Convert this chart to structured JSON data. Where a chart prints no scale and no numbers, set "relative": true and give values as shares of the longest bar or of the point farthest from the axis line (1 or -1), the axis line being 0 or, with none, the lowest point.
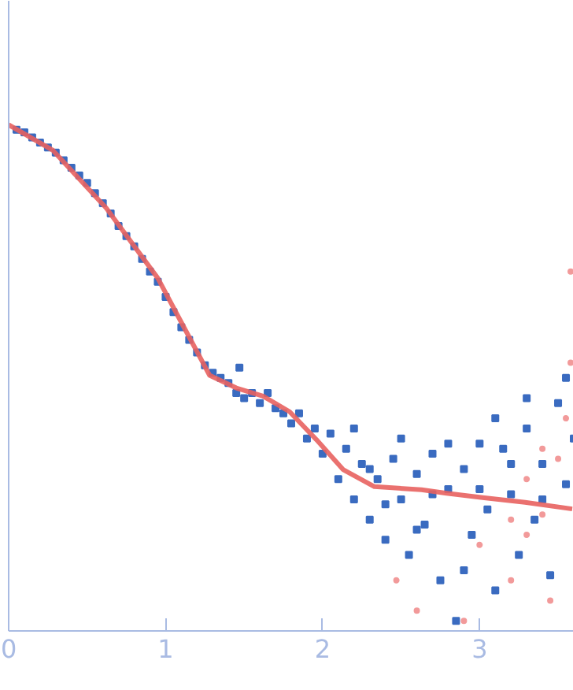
{
  "chart_data": {
    "type": "scatter",
    "relative": true,
    "xlim": [
      0,
      3.6
    ],
    "xticks": [
      0,
      1,
      2,
      3
    ],
    "grid": false,
    "marker": "square",
    "series": [
      {
        "color": "#3a6bc0",
        "x": [
          0.05,
          0.1,
          0.15,
          0.2,
          0.25,
          0.3,
          0.35,
          0.4,
          0.45,
          0.5,
          0.55,
          0.6,
          0.65,
          0.7,
          0.75,
          0.8,
          0.85,
          0.9,
          0.95,
          1.0,
          1.05,
          1.1,
          1.15,
          1.2,
          1.25,
          1.3,
          1.35,
          1.4,
          1.45,
          1.5,
          1.55,
          1.6,
          1.65,
          1.7,
          1.75,
          1.8,
          1.85,
          1.9,
          1.95,
          2.0,
          2.05,
          2.1,
          2.15,
          2.2,
          2.25,
          2.3,
          2.35,
          2.4,
          2.45,
          2.5,
          2.55,
          2.6,
          2.65,
          2.7,
          2.75,
          2.8,
          2.85,
          2.9,
          2.95,
          3.0,
          3.05,
          3.1,
          3.15,
          3.2,
          3.25,
          3.3,
          3.35,
          3.4,
          3.45,
          3.5,
          3.55,
          3.6,
          1.47,
          2.2,
          2.5,
          2.8,
          3.1,
          3.3,
          3.55,
          2.6,
          2.9,
          3.0,
          3.2,
          3.4,
          2.7,
          2.4,
          2.3
        ],
        "values": [
          0.99,
          0.985,
          0.975,
          0.965,
          0.955,
          0.945,
          0.93,
          0.915,
          0.9,
          0.885,
          0.865,
          0.845,
          0.825,
          0.8,
          0.78,
          0.76,
          0.735,
          0.71,
          0.69,
          0.66,
          0.63,
          0.6,
          0.575,
          0.55,
          0.525,
          0.51,
          0.5,
          0.49,
          0.47,
          0.46,
          0.47,
          0.45,
          0.47,
          0.44,
          0.43,
          0.41,
          0.43,
          0.38,
          0.4,
          0.35,
          0.39,
          0.3,
          0.36,
          0.26,
          0.33,
          0.22,
          0.3,
          0.18,
          0.34,
          0.26,
          0.15,
          0.31,
          0.21,
          0.35,
          0.1,
          0.28,
          0.02,
          0.32,
          0.19,
          0.37,
          0.24,
          0.08,
          0.36,
          0.27,
          0.15,
          0.4,
          0.22,
          0.33,
          0.11,
          0.45,
          0.29,
          0.38,
          0.52,
          0.4,
          0.38,
          0.37,
          0.42,
          0.46,
          0.5,
          0.2,
          0.12,
          0.28,
          0.33,
          0.26,
          0.27,
          0.25,
          0.32
        ]
      },
      {
        "color": "#f29a9a",
        "marker": "circle",
        "x": [
          2.47,
          2.6,
          2.9,
          3.0,
          3.2,
          3.3,
          3.4,
          3.45,
          3.5,
          3.55,
          3.58,
          3.4,
          3.3,
          3.2,
          3.58
        ],
        "values": [
          0.1,
          0.04,
          0.02,
          0.17,
          0.1,
          0.19,
          0.23,
          0.06,
          0.34,
          0.42,
          0.53,
          0.36,
          0.3,
          0.22,
          0.71
        ]
      },
      {
        "type": "line",
        "marker": "none",
        "color": "#e8625f",
        "x": [
          0,
          0.28,
          0.62,
          0.95,
          1.12,
          1.28,
          1.45,
          1.62,
          1.79,
          1.96,
          2.13,
          2.33,
          2.63,
          2.79,
          3.03,
          3.29,
          3.59
        ],
        "values": [
          1.0,
          0.95,
          0.836,
          0.697,
          0.598,
          0.505,
          0.48,
          0.464,
          0.433,
          0.378,
          0.319,
          0.285,
          0.279,
          0.272,
          0.263,
          0.254,
          0.241
        ]
      }
    ]
  }
}
